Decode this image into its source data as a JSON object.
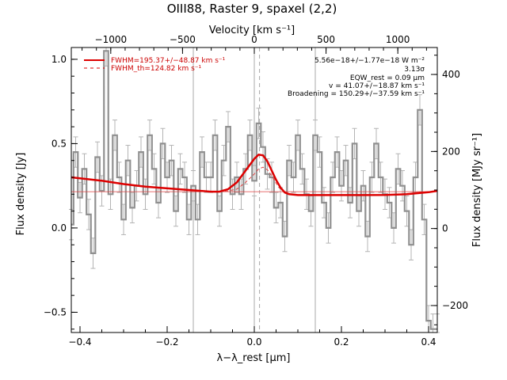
{
  "chart_data": {
    "type": "line",
    "title": "OIII88, Raster 9, spaxel (2,2)",
    "xlabel": "λ−λ_rest [μm]",
    "ylabel": "Flux density [Jy]",
    "top_xlabel": "Velocity [km s⁻¹]",
    "right_ylabel": "Flux density [MJy sr⁻¹]",
    "xlim": [
      -0.42,
      0.42
    ],
    "ylim": [
      -0.62,
      1.07
    ],
    "top_xlim": [
      -1275,
      1275
    ],
    "right_ylim": [
      -270,
      470
    ],
    "x_ticks": [
      {
        "value": -0.4,
        "label": "−0.4"
      },
      {
        "value": -0.2,
        "label": "−0.2"
      },
      {
        "value": 0.0,
        "label": "0.0"
      },
      {
        "value": 0.2,
        "label": "0.2"
      },
      {
        "value": 0.4,
        "label": "0.4"
      }
    ],
    "y_ticks": [
      {
        "value": -0.5,
        "label": "−0.5"
      },
      {
        "value": 0.0,
        "label": "0.0"
      },
      {
        "value": 0.5,
        "label": "0.5"
      },
      {
        "value": 1.0,
        "label": "1.0"
      }
    ],
    "top_ticks": [
      {
        "value": -1000,
        "label": "−1000"
      },
      {
        "value": -500,
        "label": "−500"
      },
      {
        "value": 0,
        "label": "0"
      },
      {
        "value": 500,
        "label": "500"
      },
      {
        "value": 1000,
        "label": "1000"
      }
    ],
    "right_ticks": [
      {
        "value": -200,
        "label": "−200"
      },
      {
        "value": 0,
        "label": "0"
      },
      {
        "value": 200,
        "label": "200"
      },
      {
        "value": 400,
        "label": "400"
      }
    ],
    "vertical_lines": [
      {
        "x": -0.14,
        "style": "solid"
      },
      {
        "x": 0.0,
        "style": "solid"
      },
      {
        "x": 0.14,
        "style": "solid"
      },
      {
        "x": 0.012,
        "style": "dashed"
      }
    ],
    "legend": [
      {
        "label": "FWHM=195.37+/−48.87 km s⁻¹",
        "style": "solid",
        "color": "#dd0000"
      },
      {
        "label": "FWHM_th=124.82 km s⁻¹",
        "style": "dashed",
        "color": "#dd0000"
      }
    ],
    "annotations": [
      "5.56e−18+/−1.77e−18 W m⁻²",
      "3.13σ",
      "EQW_rest = 0.09 μm",
      "v = 41.07+/−18.87 km s⁻¹",
      "Broadening = 150.29+/−37.59 km s⁻¹"
    ],
    "colors": {
      "spectrum": "#909090",
      "errorbar": "#b4b4b4",
      "fit": "#dd0000",
      "thin_fit": "#e04040",
      "reference": "#a8a8a8"
    },
    "series": [
      {
        "type": "step",
        "x": [
          -0.42,
          -0.41,
          -0.4,
          -0.39,
          -0.38,
          -0.37,
          -0.36,
          -0.35,
          -0.34,
          -0.33,
          -0.32,
          -0.31,
          -0.3,
          -0.29,
          -0.28,
          -0.27,
          -0.26,
          -0.25,
          -0.24,
          -0.23,
          -0.22,
          -0.21,
          -0.2,
          -0.19,
          -0.18,
          -0.17,
          -0.16,
          -0.15,
          -0.14,
          -0.13,
          -0.12,
          -0.11,
          -0.1,
          -0.09,
          -0.08,
          -0.07,
          -0.06,
          -0.05,
          -0.04,
          -0.03,
          -0.02,
          -0.01,
          0.0,
          0.01,
          0.02,
          0.03,
          0.04,
          0.05,
          0.06,
          0.07,
          0.08,
          0.09,
          0.1,
          0.11,
          0.12,
          0.13,
          0.14,
          0.15,
          0.16,
          0.17,
          0.18,
          0.19,
          0.2,
          0.21,
          0.22,
          0.23,
          0.24,
          0.25,
          0.26,
          0.27,
          0.28,
          0.29,
          0.3,
          0.31,
          0.32,
          0.33,
          0.34,
          0.35,
          0.36,
          0.37,
          0.38,
          0.39,
          0.4,
          0.41,
          0.42
        ],
        "y": [
          0.02,
          0.45,
          0.18,
          0.35,
          0.08,
          -0.15,
          0.42,
          0.22,
          1.05,
          0.2,
          0.55,
          0.3,
          0.05,
          0.4,
          0.12,
          0.25,
          0.45,
          0.2,
          0.55,
          0.35,
          0.15,
          0.5,
          0.3,
          0.4,
          0.1,
          0.35,
          0.3,
          0.05,
          0.25,
          0.05,
          0.45,
          0.3,
          0.3,
          0.55,
          0.1,
          0.4,
          0.6,
          0.2,
          0.3,
          0.2,
          0.35,
          0.55,
          0.28,
          0.62,
          0.48,
          0.32,
          0.3,
          0.12,
          0.15,
          -0.05,
          0.4,
          0.3,
          0.55,
          0.35,
          0.2,
          0.1,
          0.55,
          0.45,
          0.15,
          0.0,
          0.3,
          0.45,
          0.25,
          0.4,
          0.15,
          0.5,
          0.1,
          0.25,
          -0.05,
          0.3,
          0.5,
          0.3,
          0.2,
          0.15,
          0.0,
          0.35,
          0.25,
          0.1,
          -0.1,
          0.3,
          0.7,
          0.05,
          -0.55,
          -0.6,
          -0.6
        ],
        "yerr": 0.09
      },
      {
        "type": "line",
        "name": "FWHM=195.37+/−48.87 km s⁻¹",
        "x": [
          -0.42,
          -0.35,
          -0.3,
          -0.25,
          -0.2,
          -0.15,
          -0.1,
          -0.08,
          -0.06,
          -0.04,
          -0.02,
          0.0,
          0.01,
          0.02,
          0.03,
          0.04,
          0.05,
          0.06,
          0.07,
          0.08,
          0.1,
          0.15,
          0.2,
          0.25,
          0.3,
          0.35,
          0.4,
          0.42
        ],
        "y": [
          0.3,
          0.28,
          0.26,
          0.245,
          0.235,
          0.225,
          0.215,
          0.215,
          0.23,
          0.27,
          0.34,
          0.41,
          0.435,
          0.43,
          0.395,
          0.34,
          0.285,
          0.24,
          0.21,
          0.2,
          0.195,
          0.195,
          0.195,
          0.195,
          0.196,
          0.2,
          0.212,
          0.22
        ]
      },
      {
        "type": "line",
        "name": "FWHM_th=124.82 km s⁻¹",
        "style": "dashed",
        "x": [
          -0.08,
          -0.06,
          -0.04,
          -0.02,
          0.0,
          0.01,
          0.02,
          0.03,
          0.04,
          0.05,
          0.06,
          0.07,
          0.08
        ],
        "y": [
          0.215,
          0.22,
          0.23,
          0.27,
          0.32,
          0.35,
          0.36,
          0.345,
          0.31,
          0.265,
          0.23,
          0.21,
          0.2
        ]
      },
      {
        "type": "line",
        "name": "",
        "x": [
          -0.42,
          0.42
        ],
        "y": [
          0.215,
          0.215
        ]
      }
    ]
  }
}
